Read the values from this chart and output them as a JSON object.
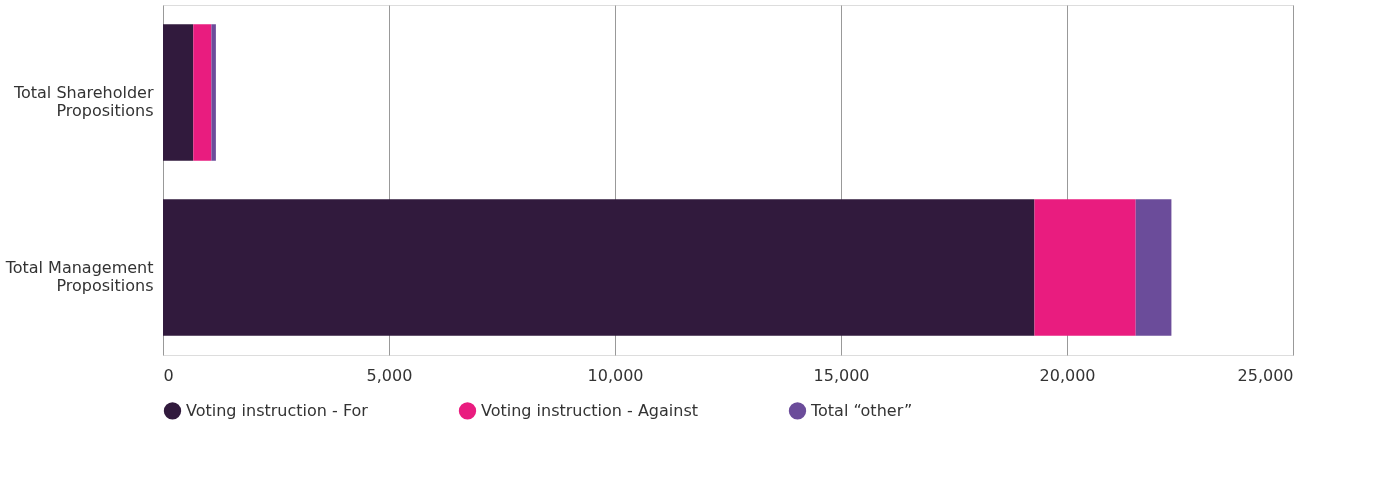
{
  "chart_data": {
    "type": "bar",
    "orientation": "horizontal",
    "stacked": true,
    "categories": [
      "Total Shareholder Propositions",
      "Total Management Propositions"
    ],
    "series": [
      {
        "name": "Voting instruction - For",
        "color": "#311a3d",
        "values": [
          670,
          19280
        ]
      },
      {
        "name": "Voting instruction - Against",
        "color": "#e91c7f",
        "values": [
          400,
          2240
        ]
      },
      {
        "name": "Total “other”",
        "color": "#6b4c9a",
        "values": [
          100,
          790
        ]
      }
    ],
    "xlim": [
      0,
      25000
    ],
    "xticks": [
      0,
      {
        "value": 5000,
        "label": "5,000"
      },
      {
        "value": 10000,
        "label": "10,000"
      },
      {
        "value": 15000,
        "label": "15,000"
      },
      {
        "value": 20000,
        "label": "20,000"
      },
      {
        "value": 25000,
        "label": "25,000"
      }
    ],
    "grid": "x",
    "legend": "bottom"
  }
}
